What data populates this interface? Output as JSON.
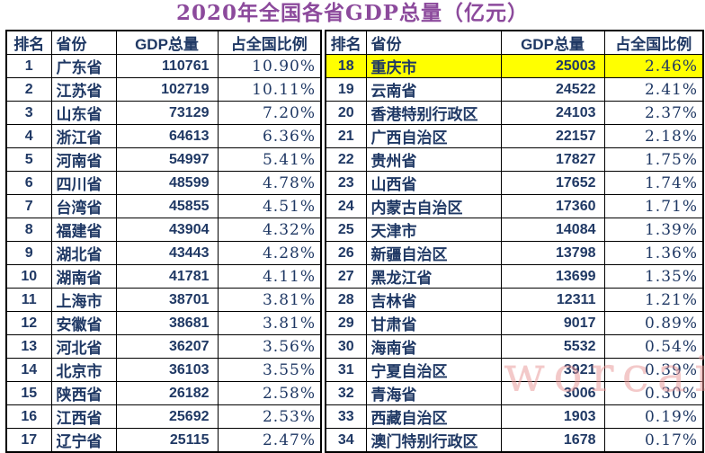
{
  "title": "2020年全国各省GDP总量（亿元）",
  "columns": [
    "排名",
    "省份",
    "GDP总量",
    "占全国比例"
  ],
  "highlight_rank": 18,
  "watermark": {
    "text": "worcai"
  },
  "colors": {
    "title_text": "#8c4a9c",
    "table_text": "#1f3864",
    "highlight_row": "#ffff00",
    "border": "#000000",
    "background": "#ffffff",
    "watermark_text": "#e89494"
  },
  "chart_data": {
    "type": "table",
    "title": "2020年全国各省GDP总量（亿元）",
    "unit": "亿元",
    "columns": [
      "排名",
      "省份",
      "GDP总量",
      "占全国比例"
    ],
    "highlighted_row_rank": 18,
    "left_rows": [
      [
        1,
        "广东省",
        "110761",
        "10.90%"
      ],
      [
        2,
        "江苏省",
        "102719",
        "10.11%"
      ],
      [
        3,
        "山东省",
        "73129",
        "7.20%"
      ],
      [
        4,
        "浙江省",
        "64613",
        "6.36%"
      ],
      [
        5,
        "河南省",
        "54997",
        "5.41%"
      ],
      [
        6,
        "四川省",
        "48599",
        "4.78%"
      ],
      [
        7,
        "台湾省",
        "45855",
        "4.51%"
      ],
      [
        8,
        "福建省",
        "43904",
        "4.32%"
      ],
      [
        9,
        "湖北省",
        "43443",
        "4.28%"
      ],
      [
        10,
        "湖南省",
        "41781",
        "4.11%"
      ],
      [
        11,
        "上海市",
        "38701",
        "3.81%"
      ],
      [
        12,
        "安徽省",
        "38681",
        "3.81%"
      ],
      [
        13,
        "河北省",
        "36207",
        "3.56%"
      ],
      [
        14,
        "北京市",
        "36103",
        "3.55%"
      ],
      [
        15,
        "陕西省",
        "26182",
        "2.58%"
      ],
      [
        16,
        "江西省",
        "25692",
        "2.53%"
      ],
      [
        17,
        "辽宁省",
        "25115",
        "2.47%"
      ]
    ],
    "right_rows": [
      [
        18,
        "重庆市",
        "25003",
        "2.46%"
      ],
      [
        19,
        "云南省",
        "24522",
        "2.41%"
      ],
      [
        20,
        "香港特别行政区",
        "24103",
        "2.37%"
      ],
      [
        21,
        "广西自治区",
        "22157",
        "2.18%"
      ],
      [
        22,
        "贵州省",
        "17827",
        "1.75%"
      ],
      [
        23,
        "山西省",
        "17652",
        "1.74%"
      ],
      [
        24,
        "内蒙古自治区",
        "17360",
        "1.71%"
      ],
      [
        25,
        "天津市",
        "14084",
        "1.39%"
      ],
      [
        26,
        "新疆自治区",
        "13798",
        "1.36%"
      ],
      [
        27,
        "黑龙江省",
        "13699",
        "1.35%"
      ],
      [
        28,
        "吉林省",
        "12311",
        "1.21%"
      ],
      [
        29,
        "甘肃省",
        "9017",
        "0.89%"
      ],
      [
        30,
        "海南省",
        "5532",
        "0.54%"
      ],
      [
        31,
        "宁夏自治区",
        "3921",
        "0.39%"
      ],
      [
        32,
        "青海省",
        "3006",
        "0.30%"
      ],
      [
        33,
        "西藏自治区",
        "1903",
        "0.19%"
      ],
      [
        34,
        "澳门特别行政区",
        "1678",
        "0.17%"
      ]
    ]
  }
}
